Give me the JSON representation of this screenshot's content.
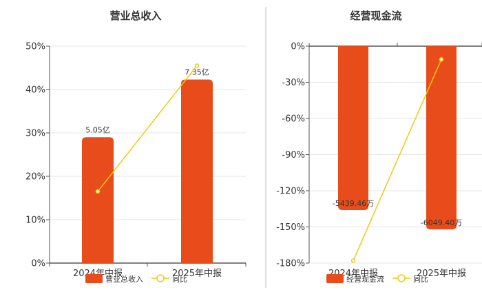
{
  "chart_data": [
    {
      "type": "bar",
      "title": "营业总收入",
      "categories": [
        "2024年中报",
        "2025年中报"
      ],
      "ylim": [
        0,
        50
      ],
      "yticks": [
        "0%",
        "10%",
        "20%",
        "30%",
        "40%",
        "50%"
      ],
      "bar_color": "#e84c1b",
      "line_color": "#f2c90f",
      "series": [
        {
          "name": "营业总收入",
          "kind": "bar",
          "values": [
            29,
            42.3
          ],
          "labels": [
            "5.05亿",
            "7.35亿"
          ]
        },
        {
          "name": "同比",
          "kind": "line",
          "values": [
            16.5,
            45.5
          ]
        }
      ],
      "legend": "bottom"
    },
    {
      "type": "bar",
      "title": "经营现金流",
      "categories": [
        "2024年中报",
        "2025年中报"
      ],
      "ylim": [
        -180,
        0
      ],
      "yticks": [
        "0%",
        "-30%",
        "-60%",
        "-90%",
        "-120%",
        "-150%",
        "-180%"
      ],
      "bar_color": "#e84c1b",
      "line_color": "#f2c90f",
      "series": [
        {
          "name": "经营现金流",
          "kind": "bar",
          "values": [
            -136,
            -152
          ],
          "labels": [
            "-5439.46万",
            "-6049.40万"
          ]
        },
        {
          "name": "同比",
          "kind": "line",
          "values": [
            -178,
            -11
          ]
        }
      ],
      "legend": "bottom"
    }
  ]
}
